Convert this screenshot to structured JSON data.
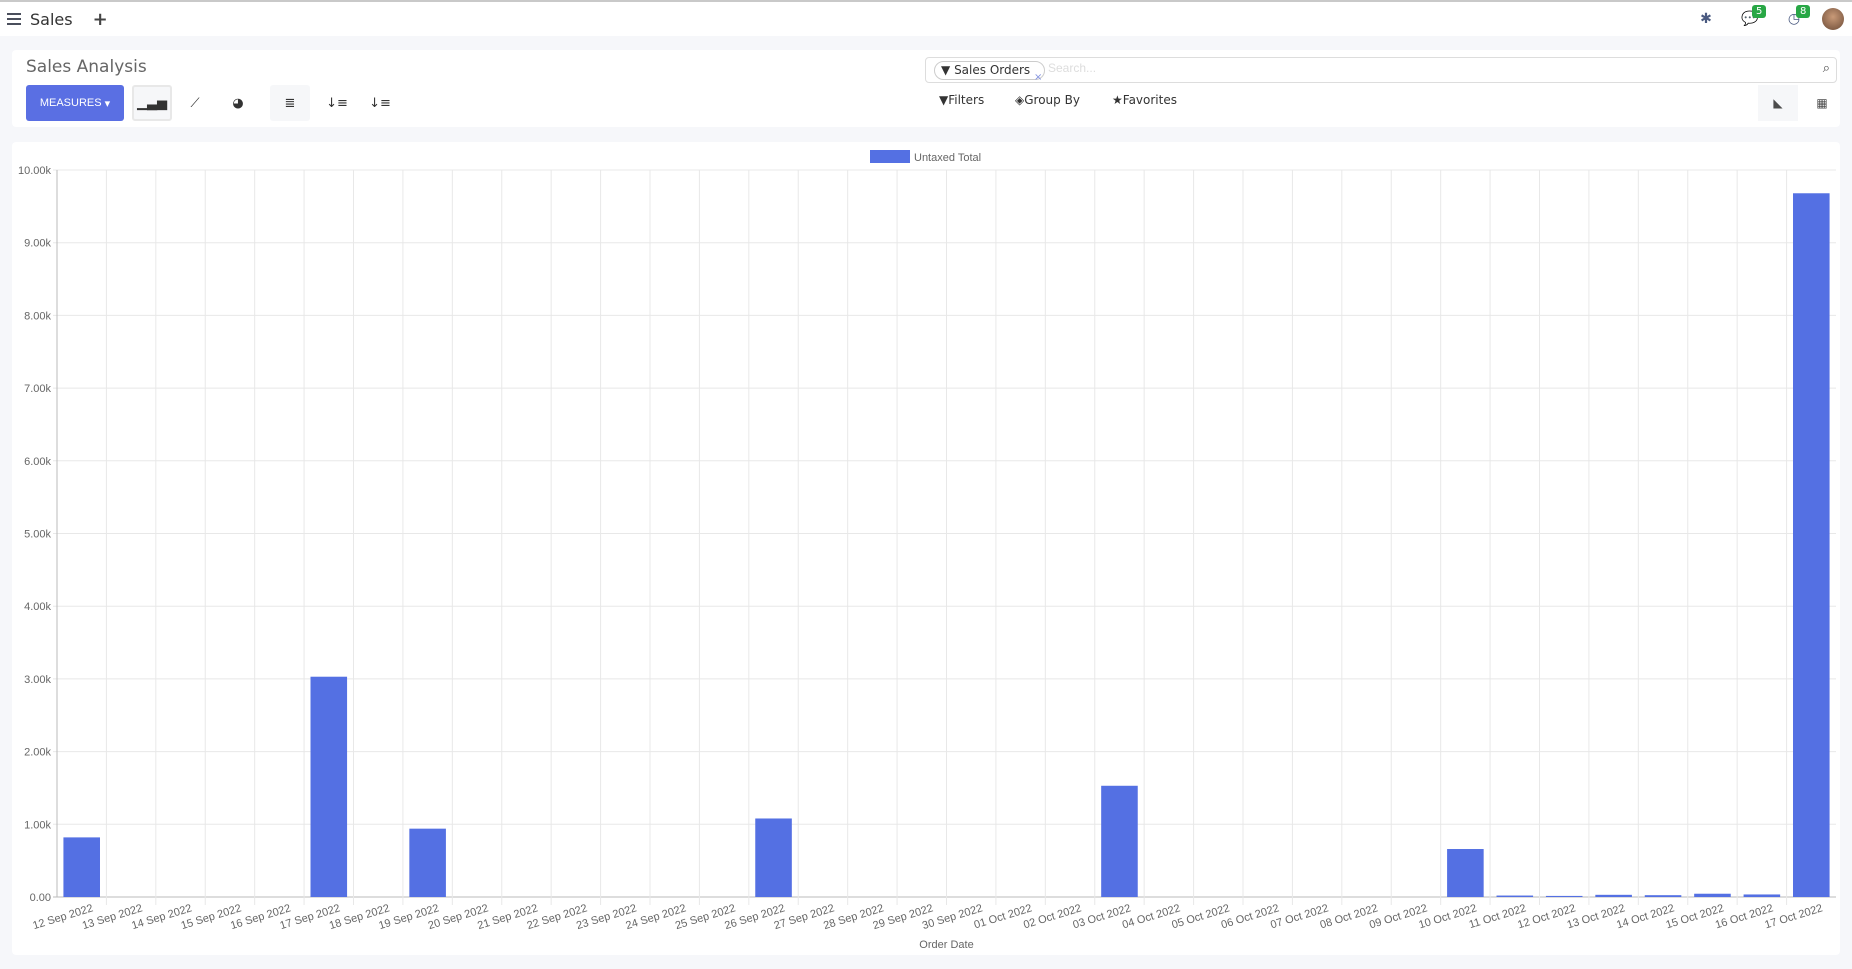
{
  "topbar": {
    "app": "Sales",
    "badges": {
      "messages": "5",
      "activities": "8"
    }
  },
  "control": {
    "title": "Sales Analysis",
    "measures": "MEASURES",
    "facet": "Sales Orders",
    "search_placeholder": "Search...",
    "filters": "Filters",
    "group_by": "Group By",
    "favorites": "Favorites"
  },
  "colors": {
    "bar": "#5470e3",
    "accent": "#5a6fe3",
    "badge": "#28a745"
  },
  "chart_data": {
    "type": "bar",
    "legend": [
      "Untaxed Total"
    ],
    "legend_position": "top",
    "xlabel": "Order Date",
    "ylabel": "",
    "ylim": [
      0,
      10000
    ],
    "yticks": [
      "0.00",
      "1.00k",
      "2.00k",
      "3.00k",
      "4.00k",
      "5.00k",
      "6.00k",
      "7.00k",
      "8.00k",
      "9.00k",
      "10.00k"
    ],
    "grid": true,
    "categories": [
      "12 Sep 2022",
      "13 Sep 2022",
      "14 Sep 2022",
      "15 Sep 2022",
      "16 Sep 2022",
      "17 Sep 2022",
      "18 Sep 2022",
      "19 Sep 2022",
      "20 Sep 2022",
      "21 Sep 2022",
      "22 Sep 2022",
      "23 Sep 2022",
      "24 Sep 2022",
      "25 Sep 2022",
      "26 Sep 2022",
      "27 Sep 2022",
      "28 Sep 2022",
      "29 Sep 2022",
      "30 Sep 2022",
      "01 Oct 2022",
      "02 Oct 2022",
      "03 Oct 2022",
      "04 Oct 2022",
      "05 Oct 2022",
      "06 Oct 2022",
      "07 Oct 2022",
      "08 Oct 2022",
      "09 Oct 2022",
      "10 Oct 2022",
      "11 Oct 2022",
      "12 Oct 2022",
      "13 Oct 2022",
      "14 Oct 2022",
      "15 Oct 2022",
      "16 Oct 2022",
      "17 Oct 2022"
    ],
    "series": [
      {
        "name": "Untaxed Total",
        "values": [
          820,
          0,
          0,
          0,
          0,
          3030,
          0,
          940,
          0,
          0,
          0,
          0,
          0,
          0,
          1080,
          0,
          0,
          0,
          0,
          0,
          0,
          1530,
          0,
          0,
          0,
          0,
          0,
          0,
          660,
          20,
          15,
          30,
          25,
          45,
          35,
          9680
        ]
      }
    ]
  }
}
